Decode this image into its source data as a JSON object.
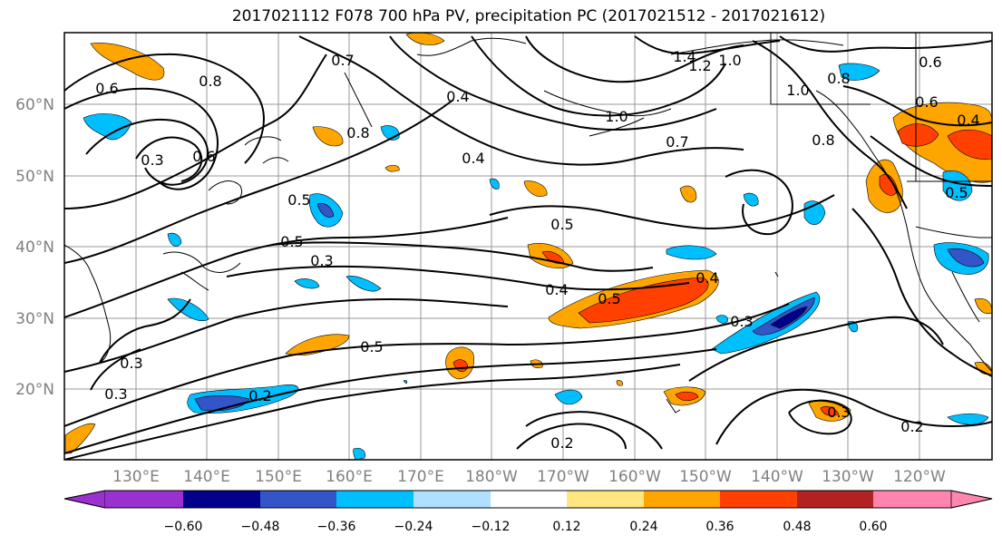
{
  "title": "2017021112 F078 700 hPa PV, precipitation PC (2017021512 - 2017021612)",
  "lat_labels": [
    "60°N",
    "50°N",
    "40°N",
    "30°N",
    "20°N"
  ],
  "lon_labels": [
    "130°E",
    "140°E",
    "150°E",
    "160°E",
    "170°E",
    "180°W",
    "170°W",
    "160°W",
    "150°W",
    "140°W",
    "130°W",
    "120°W"
  ],
  "colorbar": {
    "colors": [
      "#9b30d0",
      "#00008b",
      "#3455c8",
      "#00bfff",
      "#b0e0ff",
      "#ffffff",
      "#ffe680",
      "#ffa500",
      "#ff4000",
      "#b22222",
      "#ff85b0",
      "#ff85b0"
    ],
    "tick_labels": [
      "−0.60",
      "−0.48",
      "−0.36",
      "−0.24",
      "−0.12",
      "0.12",
      "0.24",
      "0.36",
      "0.48",
      "0.60"
    ]
  },
  "contour_labels": [
    "0.6",
    "0.8",
    "0.3",
    "0.6",
    "0.7",
    "0.8",
    "0.4",
    "1.4",
    "1.2",
    "1.0",
    "1.0",
    "0.6",
    "0.4",
    "1.0",
    "0.8",
    "0.6",
    "0.7",
    "0.8",
    "0.4",
    "0.5",
    "0.5",
    "0.5",
    "0.3",
    "0.4",
    "0.5",
    "0.4",
    "0.3",
    "0.5",
    "0.3",
    "0.3",
    "0.2",
    "0.2",
    "0.3",
    "0.2",
    "0.5"
  ]
}
